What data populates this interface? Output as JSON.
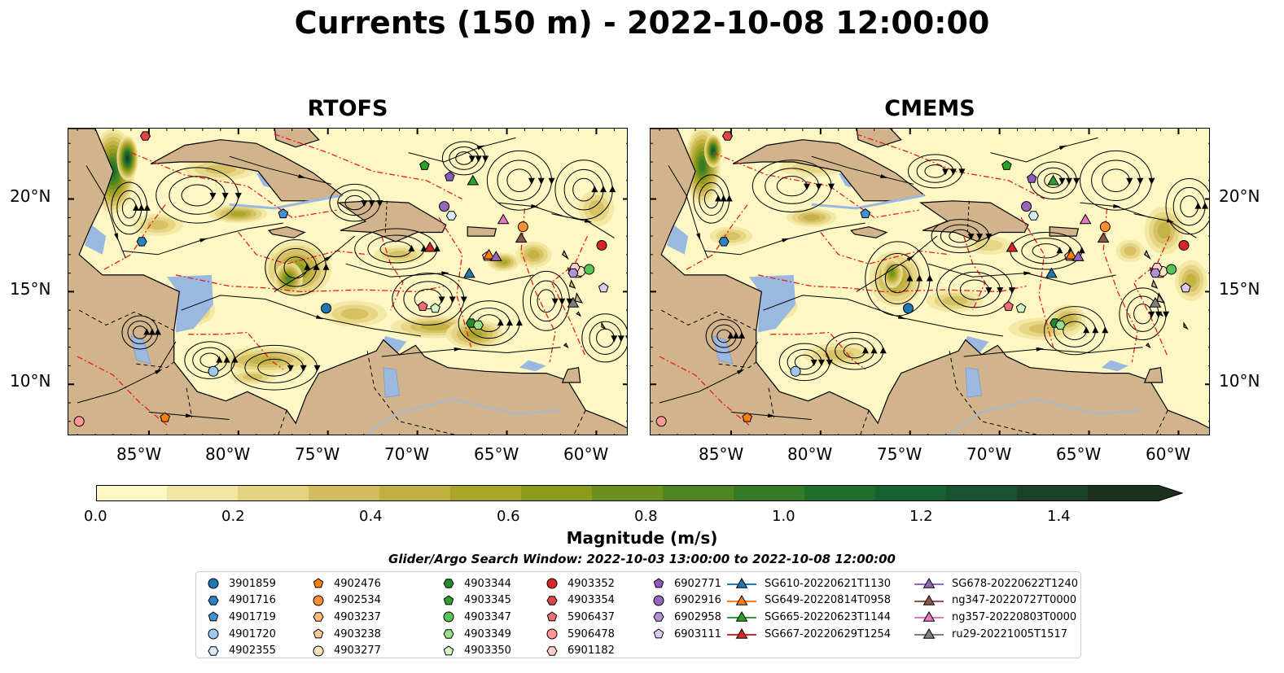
{
  "title": "Currents (150 m) - 2022-10-08 12:00:00",
  "panels": [
    {
      "title": "RTOFS"
    },
    {
      "title": "CMEMS"
    }
  ],
  "map_extent": {
    "lon": [
      -89.5,
      -58.2
    ],
    "lat": [
      7.2,
      23.8
    ]
  },
  "lon_ticks": [
    "85°W",
    "80°W",
    "75°W",
    "70°W",
    "65°W",
    "60°W"
  ],
  "lat_ticks": [
    "20°N",
    "15°N",
    "10°N"
  ],
  "colorbar": {
    "label": "Magnitude (m/s)",
    "ticks": [
      "0.0",
      "0.2",
      "0.4",
      "0.6",
      "0.8",
      "1.0",
      "1.2",
      "1.4"
    ],
    "range": [
      0,
      1.5
    ],
    "extend": "max",
    "colors": [
      "#fdf7c4",
      "#f1e6a0",
      "#e3d27f",
      "#d2bd5e",
      "#c0b03f",
      "#a8a528",
      "#8c9b1c",
      "#6d8f1d",
      "#4f8421",
      "#357a26",
      "#1e6f2c",
      "#16612f",
      "#185230",
      "#1a4226",
      "#1c321e"
    ]
  },
  "search_window": "Glider/Argo Search Window: 2022-10-03 13:00:00 to 2022-10-08 12:00:00",
  "legend": {
    "columns": [
      [
        {
          "label": "3901859",
          "marker": "circle",
          "color": "#1f77b4"
        },
        {
          "label": "4901716",
          "marker": "hexagon",
          "color": "#2b83c4"
        },
        {
          "label": "4901719",
          "marker": "pentagon",
          "color": "#3f93d0"
        },
        {
          "label": "4901720",
          "marker": "circle",
          "color": "#9ec9ee"
        },
        {
          "label": "4902355",
          "marker": "hexagon",
          "color": "#d8ecfb"
        }
      ],
      [
        {
          "label": "4902476",
          "marker": "pentagon",
          "color": "#ff7f0e"
        },
        {
          "label": "4902534",
          "marker": "circle",
          "color": "#ff8f30"
        },
        {
          "label": "4903237",
          "marker": "hexagon",
          "color": "#ffbb78"
        },
        {
          "label": "4903238",
          "marker": "pentagon",
          "color": "#ffc99a"
        },
        {
          "label": "4903277",
          "marker": "circle",
          "color": "#ffe2c4"
        }
      ],
      [
        {
          "label": "4903344",
          "marker": "hexagon",
          "color": "#238b2f"
        },
        {
          "label": "4903345",
          "marker": "pentagon",
          "color": "#2ca02c"
        },
        {
          "label": "4903347",
          "marker": "circle",
          "color": "#56c456"
        },
        {
          "label": "4903349",
          "marker": "hexagon",
          "color": "#98df8a"
        },
        {
          "label": "4903350",
          "marker": "pentagon",
          "color": "#d3f5c8"
        }
      ],
      [
        {
          "label": "4903352",
          "marker": "circle",
          "color": "#d62728"
        },
        {
          "label": "4903354",
          "marker": "hexagon",
          "color": "#e04546"
        },
        {
          "label": "5906437",
          "marker": "pentagon",
          "color": "#ef6f6f"
        },
        {
          "label": "5906478",
          "marker": "circle",
          "color": "#ff9896"
        },
        {
          "label": "6901182",
          "marker": "hexagon",
          "color": "#ffd0cf"
        }
      ],
      [
        {
          "label": "6902771",
          "marker": "pentagon",
          "color": "#8a5bbf"
        },
        {
          "label": "6902916",
          "marker": "circle",
          "color": "#9467bd"
        },
        {
          "label": "6902958",
          "marker": "hexagon",
          "color": "#b292d6"
        },
        {
          "label": "6903111",
          "marker": "pentagon",
          "color": "#dccdf0"
        }
      ],
      [
        {
          "label": "SG610-20220621T1130",
          "marker": "triangle",
          "color": "#1f77b4"
        },
        {
          "label": "SG649-20220814T0958",
          "marker": "triangle",
          "color": "#ff7f0e"
        },
        {
          "label": "SG665-20220623T1144",
          "marker": "triangle",
          "color": "#2ca02c"
        },
        {
          "label": "SG667-20220629T1254",
          "marker": "triangle",
          "color": "#d62728"
        }
      ],
      [
        {
          "label": "SG678-20220622T1240",
          "marker": "triangle",
          "color": "#9467bd"
        },
        {
          "label": "ng347-20220727T0000",
          "marker": "triangle",
          "color": "#8c564b"
        },
        {
          "label": "ng357-20220803T0000",
          "marker": "triangle",
          "color": "#e377c2"
        },
        {
          "label": "ru29-20221005T1517",
          "marker": "triangle",
          "color": "#7f7f7f"
        }
      ]
    ]
  },
  "platforms": [
    {
      "id": "3901859",
      "rtofs": [
        -75.1,
        14.1
      ],
      "cmems": [
        -75.1,
        14.1
      ]
    },
    {
      "id": "4901716",
      "rtofs": [
        -85.4,
        17.7
      ],
      "cmems": [
        -85.4,
        17.7
      ]
    },
    {
      "id": "4901719",
      "rtofs": [
        -77.5,
        19.2
      ],
      "cmems": [
        -77.5,
        19.2
      ]
    },
    {
      "id": "4901720",
      "rtofs": [
        -81.4,
        10.7
      ],
      "cmems": [
        -81.4,
        10.7
      ]
    },
    {
      "id": "4902355",
      "rtofs": [
        -68.1,
        19.1
      ],
      "cmems": [
        -68.1,
        19.1
      ]
    },
    {
      "id": "4902476",
      "rtofs": [
        -84.1,
        8.2
      ],
      "cmems": [
        -84.1,
        8.2
      ]
    },
    {
      "id": "4902534",
      "rtofs": [
        -64.1,
        18.5
      ],
      "cmems": [
        -64.1,
        18.5
      ]
    },
    {
      "id": "4903237",
      "rtofs": [
        -61.0,
        16.0
      ],
      "cmems": [
        -61.0,
        16.0
      ]
    },
    {
      "id": "4903238",
      "rtofs": [
        -66.1,
        16.9
      ],
      "cmems": [
        -66.1,
        16.9
      ]
    },
    {
      "id": "4903277",
      "rtofs": [
        -60.9,
        16.1
      ],
      "cmems": [
        -60.9,
        16.1
      ]
    },
    {
      "id": "4903344",
      "rtofs": [
        -67.0,
        13.3
      ],
      "cmems": [
        -66.9,
        13.3
      ]
    },
    {
      "id": "4903345",
      "rtofs": [
        -69.6,
        21.8
      ],
      "cmems": [
        -69.6,
        21.8
      ]
    },
    {
      "id": "4903347",
      "rtofs": [
        -60.4,
        16.2
      ],
      "cmems": [
        -60.4,
        16.2
      ]
    },
    {
      "id": "4903349",
      "rtofs": [
        -66.6,
        13.2
      ],
      "cmems": [
        -66.6,
        13.2
      ]
    },
    {
      "id": "4903350",
      "rtofs": [
        -69.0,
        14.1
      ],
      "cmems": [
        -68.8,
        14.1
      ]
    },
    {
      "id": "4903352",
      "rtofs": [
        -59.7,
        17.5
      ],
      "cmems": [
        -59.7,
        17.5
      ]
    },
    {
      "id": "4903354",
      "rtofs": [
        -85.2,
        23.4
      ],
      "cmems": [
        -85.2,
        23.4
      ]
    },
    {
      "id": "5906437",
      "rtofs": [
        -69.7,
        14.2
      ],
      "cmems": [
        -69.5,
        14.2
      ]
    },
    {
      "id": "5906478",
      "rtofs": [
        -88.9,
        8.0
      ],
      "cmems": [
        -88.9,
        8.0
      ]
    },
    {
      "id": "6901182",
      "rtofs": [
        -61.2,
        16.3
      ],
      "cmems": [
        -61.2,
        16.3
      ]
    },
    {
      "id": "6902771",
      "rtofs": [
        -68.2,
        21.2
      ],
      "cmems": [
        -68.2,
        21.1
      ]
    },
    {
      "id": "6902916",
      "rtofs": [
        -68.5,
        19.6
      ],
      "cmems": [
        -68.5,
        19.6
      ]
    },
    {
      "id": "6902958",
      "rtofs": [
        -61.3,
        16.0
      ],
      "cmems": [
        -61.3,
        16.0
      ]
    },
    {
      "id": "6903111",
      "rtofs": [
        -59.6,
        15.2
      ],
      "cmems": [
        -59.6,
        15.2
      ]
    },
    {
      "id": "SG610-20220621T1130",
      "rtofs": [
        -67.1,
        16.0
      ],
      "cmems": [
        -67.1,
        16.0
      ]
    },
    {
      "id": "SG649-20220814T0958",
      "rtofs": [
        -66.0,
        17.0
      ],
      "cmems": [
        -66.0,
        17.0
      ]
    },
    {
      "id": "SG665-20220623T1144",
      "rtofs": [
        -66.9,
        21.0
      ],
      "cmems": [
        -67.0,
        21.0
      ]
    },
    {
      "id": "SG667-20220629T1254",
      "rtofs": [
        -69.3,
        17.4
      ],
      "cmems": [
        -69.3,
        17.4
      ]
    },
    {
      "id": "SG678-20220622T1240",
      "rtofs": [
        -65.6,
        16.9
      ],
      "cmems": [
        -65.6,
        16.9
      ]
    },
    {
      "id": "ng347-20220727T0000",
      "rtofs": [
        -64.2,
        17.9
      ],
      "cmems": [
        -64.2,
        17.9
      ]
    },
    {
      "id": "ng357-20220803T0000",
      "rtofs": [
        -65.2,
        18.9
      ],
      "cmems": [
        -65.2,
        18.9
      ]
    },
    {
      "id": "ru29-20221005T1517",
      "rtofs": [
        -61.3,
        14.4
      ],
      "cmems": [
        -61.3,
        14.4
      ]
    }
  ],
  "colors": {
    "ocean": "#f3e6a6",
    "land": "#d2b48c",
    "shelf": "#9bb9e0",
    "eez": "#e61e1e",
    "streamline": "#000000"
  }
}
